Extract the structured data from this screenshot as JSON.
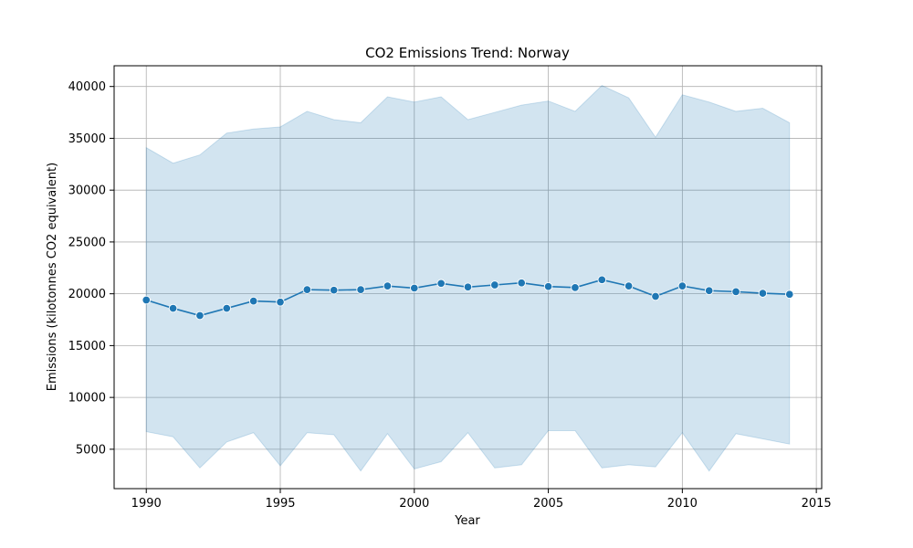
{
  "chart_data": {
    "type": "line",
    "title": "CO2 Emissions Trend: Norway",
    "xlabel": "Year",
    "ylabel": "Emissions (kilotonnes CO2 equivalent)",
    "xlim": [
      1988.8,
      2015.2
    ],
    "ylim": [
      1200,
      42000
    ],
    "xticks": [
      1990,
      1995,
      2000,
      2005,
      2010,
      2015
    ],
    "yticks": [
      5000,
      10000,
      15000,
      20000,
      25000,
      30000,
      35000,
      40000
    ],
    "grid": true,
    "line_color": "#1f77b4",
    "band_color": "#1f77b4",
    "x": [
      1990,
      1991,
      1992,
      1993,
      1994,
      1995,
      1996,
      1997,
      1998,
      1999,
      2000,
      2001,
      2002,
      2003,
      2004,
      2005,
      2006,
      2007,
      2008,
      2009,
      2010,
      2011,
      2012,
      2013,
      2014
    ],
    "y": [
      19400,
      18600,
      17900,
      18600,
      19300,
      19200,
      20400,
      20350,
      20400,
      20750,
      20550,
      21000,
      20650,
      20850,
      21050,
      20700,
      20600,
      21350,
      20750,
      19750,
      20750,
      20300,
      20200,
      20050,
      19950
    ],
    "band_upper": [
      34100,
      32600,
      33400,
      35500,
      35900,
      36100,
      37600,
      36800,
      36500,
      39000,
      38500,
      39000,
      36800,
      37500,
      38200,
      38600,
      37600,
      40100,
      38900,
      35100,
      39200,
      38500,
      37600,
      37900,
      36500
    ],
    "band_lower": [
      6700,
      6200,
      3200,
      5700,
      6600,
      3400,
      6600,
      6400,
      2900,
      6500,
      3100,
      3800,
      6600,
      3200,
      3500,
      6800,
      6800,
      3200,
      3500,
      3300,
      6600,
      2900,
      6500,
      6000,
      5500
    ]
  }
}
